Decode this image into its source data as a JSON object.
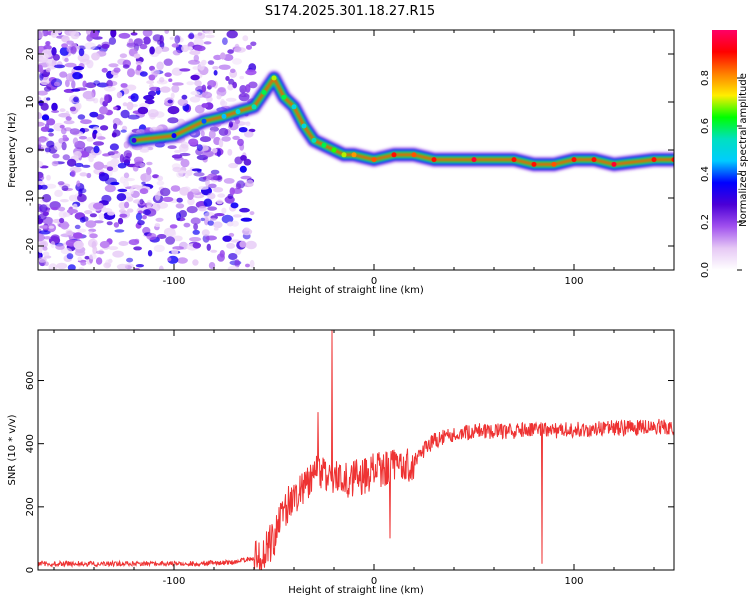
{
  "title": "S174.2025.301.18.27.R15",
  "colorbar": {
    "label": "Normalized spectral amplitude",
    "ticks": [
      "0.0",
      "0.2",
      "0.4",
      "0.6",
      "0.8"
    ],
    "tick_values": [
      0.0,
      0.2,
      0.4,
      0.6,
      0.8
    ],
    "colors": [
      "#ffffff",
      "#e6c8f5",
      "#a050ee",
      "#4b00d6",
      "#0000ff",
      "#00ccff",
      "#00e0c0",
      "#00ff00",
      "#ffee00",
      "#ff7f00",
      "#ff0000",
      "#ff0066"
    ]
  },
  "chart_data": [
    {
      "type": "heatmap",
      "xlabel": "Height of straight line (km)",
      "ylabel": "Frequency (Hz)",
      "xlim": [
        -168,
        150
      ],
      "ylim": [
        -25,
        25
      ],
      "xticks": [
        -100,
        0,
        100
      ],
      "xtick_labels": [
        "-100",
        "0",
        "100"
      ],
      "yticks": [
        -20,
        -10,
        0,
        10,
        20
      ],
      "ytick_labels": [
        "-20",
        "-10",
        "0",
        "10",
        "20"
      ],
      "ridge": {
        "description": "main spectral line",
        "x": [
          -120,
          -100,
          -85,
          -75,
          -68,
          -60,
          -55,
          -50,
          -45,
          -40,
          -35,
          -30,
          -25,
          -20,
          -15,
          -10,
          0,
          10,
          20,
          30,
          50,
          70,
          80,
          90,
          100,
          110,
          120,
          140,
          150
        ],
        "y": [
          2,
          3,
          6,
          7,
          8,
          9,
          12,
          15,
          11,
          9,
          5,
          2,
          1,
          0,
          -1,
          -1,
          -2,
          -1,
          -1,
          -2,
          -2,
          -2,
          -3,
          -3,
          -2,
          -2,
          -3,
          -2,
          -2
        ],
        "amplitude": [
          0.3,
          0.35,
          0.4,
          0.45,
          0.5,
          0.55,
          0.6,
          0.7,
          0.6,
          0.5,
          0.5,
          0.55,
          0.6,
          0.65,
          0.7,
          0.8,
          0.85,
          0.9,
          0.85,
          0.9,
          0.95,
          0.9,
          0.9,
          0.85,
          0.9,
          0.9,
          0.95,
          0.9,
          0.9
        ]
      },
      "noise_region": {
        "x_range": [
          -168,
          -70
        ],
        "amplitude_range": [
          0.05,
          0.35
        ]
      }
    },
    {
      "type": "line",
      "xlabel": "Height of straight line (km)",
      "ylabel": "SNR (10 * v/v)",
      "xlim": [
        -168,
        150
      ],
      "ylim": [
        0,
        760
      ],
      "xticks": [
        -100,
        0,
        100
      ],
      "xtick_labels": [
        "-100",
        "0",
        "100"
      ],
      "yticks": [
        0,
        200,
        400,
        600
      ],
      "ytick_labels": [
        "0",
        "200",
        "400",
        "600"
      ],
      "color": "#ee3333",
      "series": [
        {
          "name": "SNR",
          "x": [
            -168,
            -150,
            -130,
            -110,
            -90,
            -70,
            -60,
            -55,
            -50,
            -45,
            -40,
            -35,
            -30,
            -25,
            -22,
            -20,
            -15,
            -10,
            -5,
            0,
            5,
            10,
            20,
            25,
            30,
            40,
            50,
            60,
            70,
            80,
            90,
            100,
            110,
            120,
            130,
            140,
            150
          ],
          "y": [
            20,
            20,
            20,
            20,
            20,
            25,
            40,
            60,
            100,
            180,
            240,
            260,
            320,
            300,
            320,
            290,
            280,
            290,
            300,
            310,
            320,
            330,
            340,
            380,
            410,
            430,
            440,
            440,
            440,
            445,
            440,
            445,
            445,
            450,
            450,
            455,
            450
          ]
        }
      ],
      "spikes": [
        {
          "x": -21,
          "y": 760
        },
        {
          "x": 84,
          "y": 20
        },
        {
          "x": -28,
          "y": 500
        },
        {
          "x": 8,
          "y": 100
        }
      ]
    }
  ]
}
